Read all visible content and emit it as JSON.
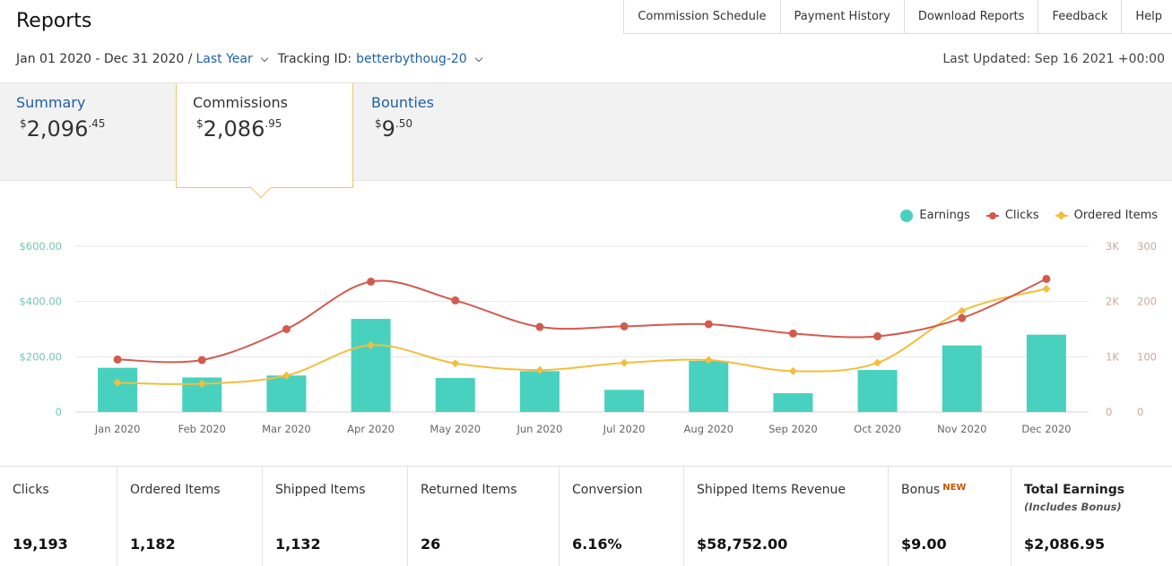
{
  "header": {
    "title": "Reports",
    "nav": [
      "Commission Schedule",
      "Payment History",
      "Download Reports",
      "Feedback",
      "Help"
    ],
    "date_range": "Jan 01 2020 - Dec 31 2020 /",
    "period": "Last Year",
    "tracking_label": "Tracking ID:",
    "tracking_id": "betterbythoug-20",
    "last_updated": "Last Updated: Sep 16 2021 +00:00"
  },
  "tabs": [
    {
      "label": "Summary",
      "currency": "$",
      "whole": "2,096",
      "cents": ".45",
      "active": false
    },
    {
      "label": "Commissions",
      "currency": "$",
      "whole": "2,086",
      "cents": ".95",
      "active": true
    },
    {
      "label": "Bounties",
      "currency": "$",
      "whole": "9",
      "cents": ".50",
      "active": false
    }
  ],
  "legend": {
    "earnings": "Earnings",
    "clicks": "Clicks",
    "ordered": "Ordered Items"
  },
  "colors": {
    "earnings": "#48d1bf",
    "clicks": "#d35a4f",
    "ordered": "#f3be3d",
    "left_axis": "#6fc6b5",
    "right_axis": "#c9a99a"
  },
  "chart_data": {
    "type": "bar",
    "categories": [
      "Jan 2020",
      "Feb 2020",
      "Mar 2020",
      "Apr 2020",
      "May 2020",
      "Jun 2020",
      "Jul 2020",
      "Aug 2020",
      "Sep 2020",
      "Oct 2020",
      "Nov 2020",
      "Dec 2020"
    ],
    "series": [
      {
        "name": "Earnings",
        "type": "bar",
        "axis": "left",
        "values": [
          160,
          125,
          132,
          337,
          123,
          148,
          80,
          185,
          68,
          152,
          241,
          280
        ]
      },
      {
        "name": "Clicks",
        "type": "line",
        "axis": "right",
        "values": [
          950,
          940,
          1500,
          2360,
          2020,
          1540,
          1550,
          1590,
          1420,
          1370,
          1700,
          2410
        ]
      },
      {
        "name": "Ordered Items",
        "type": "line",
        "axis": "right2",
        "values": [
          53,
          51,
          66,
          121,
          88,
          76,
          89,
          94,
          74,
          89,
          183,
          223
        ]
      }
    ],
    "left_axis": {
      "ticks": [
        "0",
        "$200.00",
        "$400.00",
        "$600.00"
      ],
      "ylim": [
        0,
        600
      ]
    },
    "right_axis": {
      "ticks": [
        "0",
        "1K",
        "2K",
        "3K"
      ],
      "ylim": [
        0,
        3000
      ]
    },
    "right_axis2": {
      "ticks": [
        "0",
        "100",
        "200",
        "300"
      ],
      "ylim": [
        0,
        300
      ]
    },
    "legend_position": "top-right",
    "grid": true
  },
  "stats": [
    {
      "label": "Clicks",
      "value": "19,193"
    },
    {
      "label": "Ordered Items",
      "value": "1,182"
    },
    {
      "label": "Shipped Items",
      "value": "1,132"
    },
    {
      "label": "Returned Items",
      "value": "26"
    },
    {
      "label": "Conversion",
      "value": "6.16%"
    },
    {
      "label": "Shipped Items Revenue",
      "value": "$58,752.00"
    },
    {
      "label": "Bonus",
      "badge": "NEW",
      "value": "$9.00"
    },
    {
      "label": "Total Earnings",
      "sub": "(Includes Bonus)",
      "value": "$2,086.95"
    }
  ]
}
